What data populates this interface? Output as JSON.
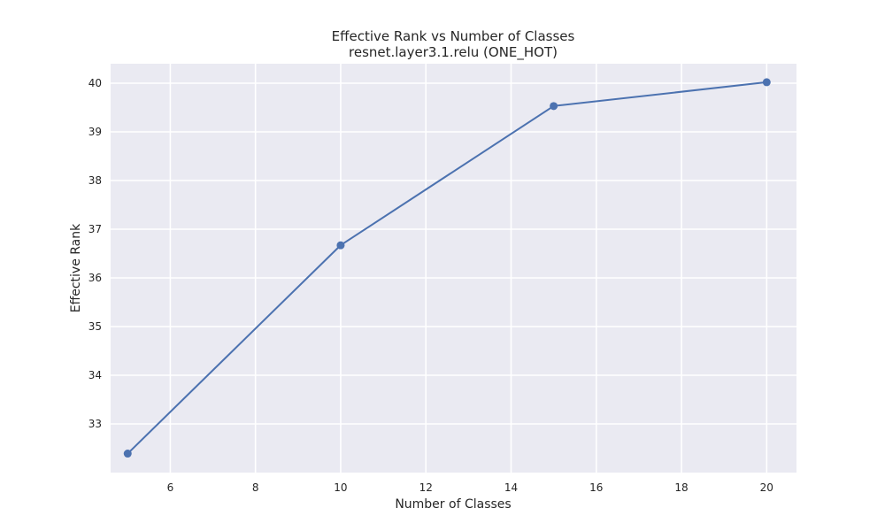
{
  "chart_data": {
    "type": "line",
    "title": "Effective Rank vs Number of Classes",
    "subtitle": "resnet.layer3.1.relu (ONE_HOT)",
    "xlabel": "Number of Classes",
    "ylabel": "Effective Rank",
    "x": [
      5,
      10,
      15,
      20
    ],
    "series": [
      {
        "values": [
          32.39,
          36.67,
          39.53,
          40.02
        ]
      }
    ],
    "xlim": [
      4.6,
      20.7
    ],
    "ylim": [
      32.0,
      40.4
    ],
    "xticks": [
      6,
      8,
      10,
      12,
      14,
      16,
      18,
      20
    ],
    "yticks": [
      33,
      34,
      35,
      36,
      37,
      38,
      39,
      40
    ],
    "grid": true,
    "colors": {
      "line": "#4c72b0",
      "plot_background": "#eaeaf2",
      "grid": "#ffffff"
    }
  }
}
